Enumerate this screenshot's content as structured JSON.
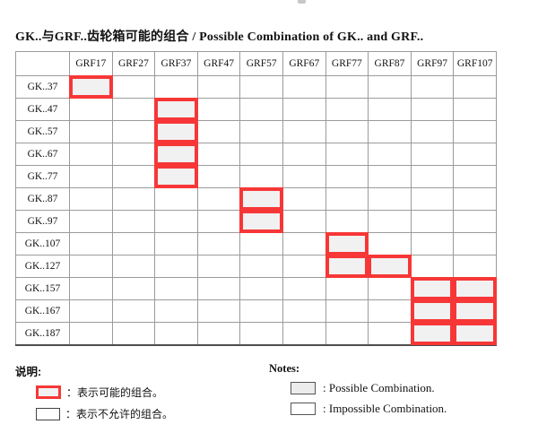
{
  "page": {
    "title": "GK..与GRF..齿轮箱可能的组合 / Possible Combination of GK.. and GRF.."
  },
  "table": {
    "corner_label": "",
    "col_headers": [
      "GRF17",
      "GRF27",
      "GRF37",
      "GRF47",
      "GRF57",
      "GRF67",
      "GRF77",
      "GRF87",
      "GRF97",
      "GRF107"
    ],
    "rows": [
      {
        "label": "GK..37",
        "possible": [
          "GRF17"
        ]
      },
      {
        "label": "GK..47",
        "possible": [
          "GRF37"
        ]
      },
      {
        "label": "GK..57",
        "possible": [
          "GRF37"
        ]
      },
      {
        "label": "GK..67",
        "possible": [
          "GRF37"
        ]
      },
      {
        "label": "GK..77",
        "possible": [
          "GRF37"
        ]
      },
      {
        "label": "GK..87",
        "possible": [
          "GRF57"
        ]
      },
      {
        "label": "GK..97",
        "possible": [
          "GRF57"
        ]
      },
      {
        "label": "GK..107",
        "possible": [
          "GRF77"
        ]
      },
      {
        "label": "GK..127",
        "possible": [
          "GRF77",
          "GRF87"
        ]
      },
      {
        "label": "GK..157",
        "possible": [
          "GRF97",
          "GRF107"
        ]
      },
      {
        "label": "GK..167",
        "possible": [
          "GRF97",
          "GRF107"
        ]
      },
      {
        "label": "GK..187",
        "possible": [
          "GRF97",
          "GRF107"
        ]
      }
    ]
  },
  "legend_cn": {
    "heading": "说明:",
    "items": [
      {
        "type": "possible",
        "label": "：表示可能的组合。"
      },
      {
        "type": "impossible",
        "label": "：表示不允许的组合。"
      }
    ]
  },
  "legend_en": {
    "heading": "Notes:",
    "items": [
      {
        "type": "possible",
        "label": ": Possible Combination."
      },
      {
        "type": "impossible",
        "label": ": Impossible Combination."
      }
    ]
  },
  "colors": {
    "highlight_red": "#f73737",
    "highlight_fill": "#f1f1f1",
    "grid_line": "#9b9b9b"
  }
}
